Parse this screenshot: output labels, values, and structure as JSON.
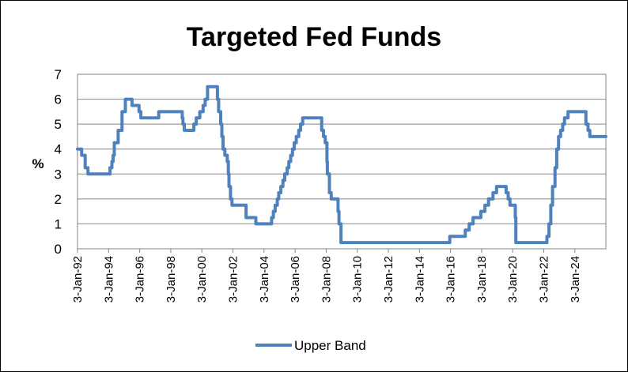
{
  "chart_data": {
    "type": "line",
    "title": "Targeted Fed Funds",
    "xlabel": "",
    "ylabel": "%",
    "ylim": [
      0,
      7
    ],
    "yticks": [
      "0",
      "1",
      "2",
      "3",
      "4",
      "5",
      "6",
      "7"
    ],
    "xlim": [
      "1992-01-03",
      "2025-12-31"
    ],
    "xticks": [
      {
        "date": "1992-01-03",
        "label": "3-Jan-92"
      },
      {
        "date": "1994-01-03",
        "label": "3-Jan-94"
      },
      {
        "date": "1996-01-03",
        "label": "3-Jan-96"
      },
      {
        "date": "1998-01-03",
        "label": "3-Jan-98"
      },
      {
        "date": "2000-01-03",
        "label": "3-Jan-00"
      },
      {
        "date": "2002-01-03",
        "label": "3-Jan-02"
      },
      {
        "date": "2004-01-03",
        "label": "3-Jan-04"
      },
      {
        "date": "2006-01-03",
        "label": "3-Jan-06"
      },
      {
        "date": "2008-01-03",
        "label": "3-Jan-08"
      },
      {
        "date": "2010-01-03",
        "label": "3-Jan-10"
      },
      {
        "date": "2012-01-03",
        "label": "3-Jan-12"
      },
      {
        "date": "2014-01-03",
        "label": "3-Jan-14"
      },
      {
        "date": "2016-01-03",
        "label": "3-Jan-16"
      },
      {
        "date": "2018-01-03",
        "label": "3-Jan-18"
      },
      {
        "date": "2020-01-03",
        "label": "3-Jan-20"
      },
      {
        "date": "2022-01-03",
        "label": "3-Jan-22"
      },
      {
        "date": "2024-01-03",
        "label": "3-Jan-24"
      }
    ],
    "grid": true,
    "legend_position": "bottom",
    "series": [
      {
        "name": "Upper Band",
        "color": "#4f81bd",
        "points": [
          [
            "1992-01-03",
            4.0
          ],
          [
            "1992-04-09",
            3.75
          ],
          [
            "1992-07-02",
            3.25
          ],
          [
            "1992-09-04",
            3.0
          ],
          [
            "1994-02-04",
            3.25
          ],
          [
            "1994-03-22",
            3.5
          ],
          [
            "1994-04-18",
            3.75
          ],
          [
            "1994-05-17",
            4.25
          ],
          [
            "1994-08-16",
            4.75
          ],
          [
            "1994-11-15",
            5.5
          ],
          [
            "1995-02-01",
            6.0
          ],
          [
            "1995-07-06",
            5.75
          ],
          [
            "1995-12-19",
            5.5
          ],
          [
            "1996-01-31",
            5.25
          ],
          [
            "1997-03-25",
            5.5
          ],
          [
            "1998-09-29",
            5.25
          ],
          [
            "1998-10-15",
            5.0
          ],
          [
            "1998-11-17",
            4.75
          ],
          [
            "1999-06-30",
            5.0
          ],
          [
            "1999-08-24",
            5.25
          ],
          [
            "1999-11-16",
            5.5
          ],
          [
            "2000-02-02",
            5.75
          ],
          [
            "2000-03-21",
            6.0
          ],
          [
            "2000-05-16",
            6.5
          ],
          [
            "2001-01-03",
            6.0
          ],
          [
            "2001-01-31",
            5.5
          ],
          [
            "2001-03-20",
            5.0
          ],
          [
            "2001-04-18",
            4.5
          ],
          [
            "2001-05-15",
            4.0
          ],
          [
            "2001-06-27",
            3.75
          ],
          [
            "2001-08-21",
            3.5
          ],
          [
            "2001-09-17",
            3.0
          ],
          [
            "2001-10-02",
            2.5
          ],
          [
            "2001-11-06",
            2.0
          ],
          [
            "2001-12-11",
            1.75
          ],
          [
            "2002-11-06",
            1.25
          ],
          [
            "2003-06-25",
            1.0
          ],
          [
            "2004-06-30",
            1.25
          ],
          [
            "2004-08-10",
            1.5
          ],
          [
            "2004-09-21",
            1.75
          ],
          [
            "2004-11-10",
            2.0
          ],
          [
            "2004-12-14",
            2.25
          ],
          [
            "2005-02-02",
            2.5
          ],
          [
            "2005-03-22",
            2.75
          ],
          [
            "2005-05-03",
            3.0
          ],
          [
            "2005-06-30",
            3.25
          ],
          [
            "2005-08-09",
            3.5
          ],
          [
            "2005-09-20",
            3.75
          ],
          [
            "2005-11-01",
            4.0
          ],
          [
            "2005-12-13",
            4.25
          ],
          [
            "2006-01-31",
            4.5
          ],
          [
            "2006-03-28",
            4.75
          ],
          [
            "2006-05-10",
            5.0
          ],
          [
            "2006-06-29",
            5.25
          ],
          [
            "2007-09-18",
            4.75
          ],
          [
            "2007-10-31",
            4.5
          ],
          [
            "2007-12-11",
            4.25
          ],
          [
            "2008-01-22",
            3.5
          ],
          [
            "2008-01-30",
            3.0
          ],
          [
            "2008-03-18",
            2.25
          ],
          [
            "2008-04-30",
            2.0
          ],
          [
            "2008-10-08",
            1.5
          ],
          [
            "2008-10-29",
            1.0
          ],
          [
            "2008-12-16",
            0.25
          ],
          [
            "2015-12-17",
            0.5
          ],
          [
            "2016-12-15",
            0.75
          ],
          [
            "2017-03-16",
            1.0
          ],
          [
            "2017-06-15",
            1.25
          ],
          [
            "2017-12-14",
            1.5
          ],
          [
            "2018-03-22",
            1.75
          ],
          [
            "2018-06-14",
            2.0
          ],
          [
            "2018-09-27",
            2.25
          ],
          [
            "2018-12-20",
            2.5
          ],
          [
            "2019-08-01",
            2.25
          ],
          [
            "2019-09-19",
            2.0
          ],
          [
            "2019-10-31",
            1.75
          ],
          [
            "2020-03-04",
            1.25
          ],
          [
            "2020-03-16",
            0.25
          ],
          [
            "2022-03-17",
            0.5
          ],
          [
            "2022-05-05",
            1.0
          ],
          [
            "2022-06-16",
            1.75
          ],
          [
            "2022-07-28",
            2.5
          ],
          [
            "2022-09-22",
            3.25
          ],
          [
            "2022-11-03",
            4.0
          ],
          [
            "2022-12-15",
            4.5
          ],
          [
            "2023-02-02",
            4.75
          ],
          [
            "2023-03-23",
            5.0
          ],
          [
            "2023-05-04",
            5.25
          ],
          [
            "2023-07-27",
            5.5
          ],
          [
            "2024-09-19",
            5.0
          ],
          [
            "2024-11-08",
            4.75
          ],
          [
            "2024-12-19",
            4.5
          ],
          [
            "2025-12-31",
            4.5
          ]
        ]
      }
    ]
  }
}
